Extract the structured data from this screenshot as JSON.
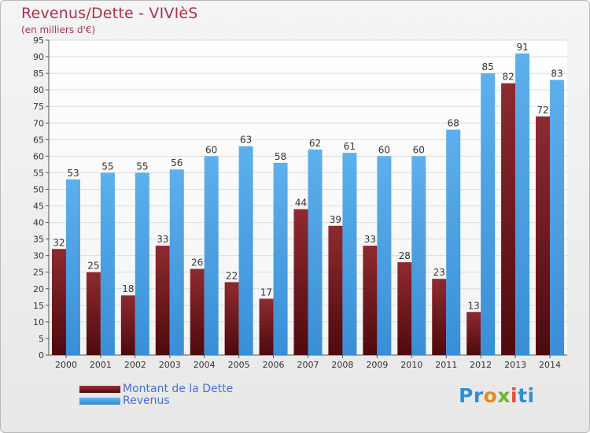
{
  "header": {
    "title": "Revenus/Dette - VIVIèS",
    "subtitle": "(en milliers d'€)"
  },
  "legend": {
    "items": [
      {
        "label": "Montant de la Dette",
        "color": "#7a1e22"
      },
      {
        "label": "Revenus",
        "color": "#4a9ee0"
      }
    ]
  },
  "logo": {
    "text": "Proxiti",
    "parts": [
      "Pr",
      "o",
      "x",
      "i",
      "ti"
    ]
  },
  "chart_data": {
    "type": "bar",
    "title": "Revenus/Dette - VIVIèS",
    "subtitle": "(en milliers d'€)",
    "categories": [
      "2000",
      "2001",
      "2002",
      "2003",
      "2004",
      "2005",
      "2006",
      "2007",
      "2008",
      "2009",
      "2010",
      "2011",
      "2012",
      "2013",
      "2014"
    ],
    "series": [
      {
        "name": "Montant de la Dette",
        "color": "#7a1e22",
        "values": [
          32,
          25,
          18,
          33,
          26,
          22,
          17,
          44,
          39,
          33,
          28,
          23,
          13,
          82,
          72
        ]
      },
      {
        "name": "Revenus",
        "color": "#4a9ee0",
        "values": [
          53,
          55,
          55,
          56,
          60,
          63,
          58,
          62,
          61,
          60,
          60,
          68,
          85,
          91,
          83
        ]
      }
    ],
    "ylim": [
      0,
      95
    ],
    "yticks": [
      0,
      5,
      10,
      15,
      20,
      25,
      30,
      35,
      40,
      45,
      50,
      55,
      60,
      65,
      70,
      75,
      80,
      85,
      90,
      95
    ],
    "grid": true,
    "legend_position": "bottom-left"
  }
}
